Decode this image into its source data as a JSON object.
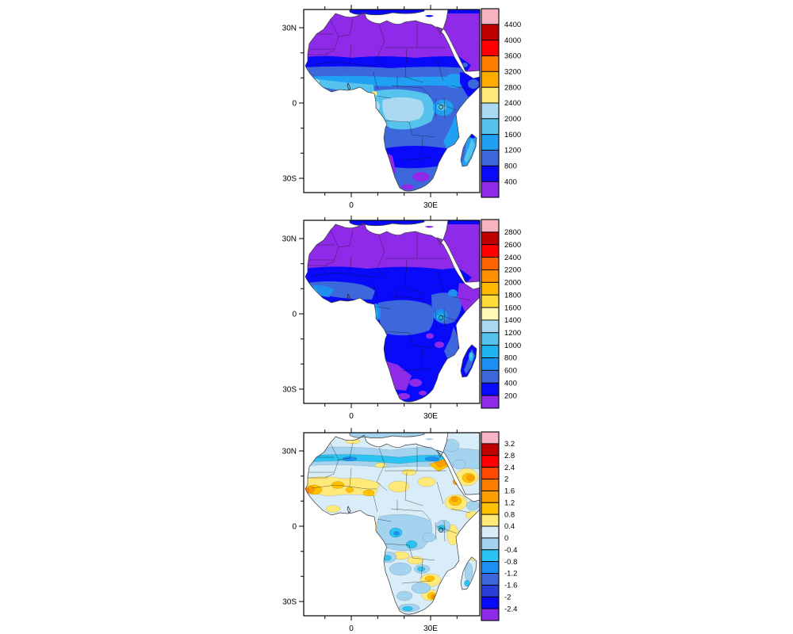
{
  "figure": {
    "background": "#FFFFFF",
    "description": "Three stacked filled-contour maps of Africa with vertical labeled colorbars: two precipitation climatology panels and one difference panel"
  },
  "panels": [
    {
      "id": "panel-top",
      "axis": {
        "left_labels": [
          "30N",
          "0",
          "30S"
        ],
        "bottom_labels": [
          "0",
          "30E"
        ]
      },
      "colorbar": {
        "labels": [
          "4400",
          "4000",
          "3600",
          "3200",
          "2800",
          "2400",
          "2000",
          "1600",
          "1200",
          "800",
          "400"
        ],
        "colors": [
          "#F9B4C4",
          "#C00000",
          "#FE0000",
          "#FF7D00",
          "#FFAC00",
          "#FFE978",
          "#AAD9F1",
          "#55C3EC",
          "#1FA0F2",
          "#3C68DB",
          "#0A0AFA",
          "#8F2BE8"
        ]
      }
    },
    {
      "id": "panel-middle",
      "axis": {
        "left_labels": [
          "30N",
          "0",
          "30S"
        ],
        "bottom_labels": [
          "0",
          "30E"
        ]
      },
      "colorbar": {
        "labels": [
          "2800",
          "2600",
          "2400",
          "2200",
          "2000",
          "1800",
          "1600",
          "1400",
          "1200",
          "1000",
          "800",
          "600",
          "400",
          "200"
        ],
        "colors": [
          "#F9B4C4",
          "#C00000",
          "#FE0000",
          "#FF6400",
          "#FF9100",
          "#FFB900",
          "#FFDC3A",
          "#FFF9B5",
          "#AAD9F1",
          "#55C3EC",
          "#1FB4F1",
          "#1E8FF2",
          "#3C68DB",
          "#0A0AFA",
          "#8F2BE8"
        ]
      }
    },
    {
      "id": "panel-bottom",
      "axis": {
        "left_labels": [
          "30N",
          "0",
          "30S"
        ],
        "bottom_labels": [
          "0",
          "30E"
        ]
      },
      "colorbar": {
        "labels": [
          "3.2",
          "2.8",
          "2.4",
          "2",
          "1.6",
          "1.2",
          "0.8",
          "0.4",
          "0",
          "-0.4",
          "-0.8",
          "-1.2",
          "-1.6",
          "-2",
          "-2.4"
        ],
        "colors": [
          "#F9B4C4",
          "#C00000",
          "#FE0000",
          "#FF4A00",
          "#FF7D00",
          "#FF9E00",
          "#FFC100",
          "#FFE978",
          "#D9EDF8",
          "#A3D3EF",
          "#2AC3F2",
          "#1E8FF2",
          "#3C68DB",
          "#2A3FD6",
          "#0A0AFA",
          "#8F2BE8"
        ]
      }
    }
  ],
  "chart_data": [
    {
      "type": "heatmap",
      "subtype": "filled-contour-map",
      "region": "Africa",
      "panel": "top",
      "levels": [
        400,
        800,
        1200,
        1600,
        2000,
        2400,
        2800,
        3200,
        3600,
        4000,
        4400
      ],
      "palette_top_to_bottom": [
        "#F9B4C4",
        "#C00000",
        "#FE0000",
        "#FF7D00",
        "#FFAC00",
        "#FFE978",
        "#AAD9F1",
        "#55C3EC",
        "#1FA0F2",
        "#3C68DB",
        "#0A0AFA",
        "#8F2BE8"
      ],
      "axis": {
        "x_ticks": [
          "0",
          "30E"
        ],
        "y_ticks": [
          "30N",
          "0",
          "30S"
        ],
        "lon_range_deg": [
          -18,
          48.6
        ],
        "lat_range_deg": [
          -35.7,
          37.3
        ]
      },
      "features": "Sahara and Arabia below 400; Sahel banded 400-1200; Guinea coast and Congo basin 1600-2400 with a small 2400-2800 spot near Cameroon; East Africa 1200-1600; southern Africa 400-1200 with <400 along Namibian coast; Madagascar 1200-2000 on east side"
    },
    {
      "type": "heatmap",
      "subtype": "filled-contour-map",
      "region": "Africa",
      "panel": "middle",
      "levels": [
        200,
        400,
        600,
        800,
        1000,
        1200,
        1400,
        1600,
        1800,
        2000,
        2200,
        2400,
        2600,
        2800
      ],
      "palette_top_to_bottom": [
        "#F9B4C4",
        "#C00000",
        "#FE0000",
        "#FF6400",
        "#FF9100",
        "#FFB900",
        "#FFDC3A",
        "#FFF9B5",
        "#AAD9F1",
        "#55C3EC",
        "#1FB4F1",
        "#1E8FF2",
        "#3C68DB",
        "#0A0AFA",
        "#8F2BE8"
      ],
      "axis": {
        "x_ticks": [
          "0",
          "30E"
        ],
        "y_ticks": [
          "30N",
          "0",
          "30S"
        ],
        "lon_range_deg": [
          -18,
          48.6
        ],
        "lat_range_deg": [
          -35.7,
          37.3
        ]
      },
      "features": "Sahara, Horn of Africa and southwest Africa below 200; most of sub-Saharan Africa 200-400; 400-600 over West Africa, Congo and East Africa; 600-1000 spots on Guinea coast, Gabon and around Lake Victoria; Madagascar east coast up to 1000-1200"
    },
    {
      "type": "heatmap",
      "subtype": "filled-contour-map-difference",
      "region": "Africa",
      "panel": "bottom",
      "levels": [
        -2.4,
        -2.0,
        -1.6,
        -1.2,
        -0.8,
        -0.4,
        0,
        0.4,
        0.8,
        1.2,
        1.6,
        2.0,
        2.4,
        2.8,
        3.2
      ],
      "palette_top_to_bottom": [
        "#F9B4C4",
        "#C00000",
        "#FE0000",
        "#FF4A00",
        "#FF7D00",
        "#FF9E00",
        "#FFC100",
        "#FFE978",
        "#D9EDF8",
        "#A3D3EF",
        "#2AC3F2",
        "#1E8FF2",
        "#3C68DB",
        "#2A3FD6",
        "#0A0AFA",
        "#8F2BE8"
      ],
      "axis": {
        "x_ticks": [
          "0",
          "30E"
        ],
        "y_ticks": [
          "30N",
          "0",
          "30S"
        ],
        "lon_range_deg": [
          -18,
          48.6
        ],
        "lat_range_deg": [
          -35.7,
          37.3
        ]
      },
      "features": "Mottled difference field near zero: negative (blue) band across the central Sahara near 25N and over the Congo basin, Angola and the Cape south coast; positive (yellow-orange) patches over Senegal, the Sahel, Sudan, Ethiopia/Eritrea, the Red Sea coast, central Arabia, Zimbabwe and the South African east coast"
    }
  ]
}
